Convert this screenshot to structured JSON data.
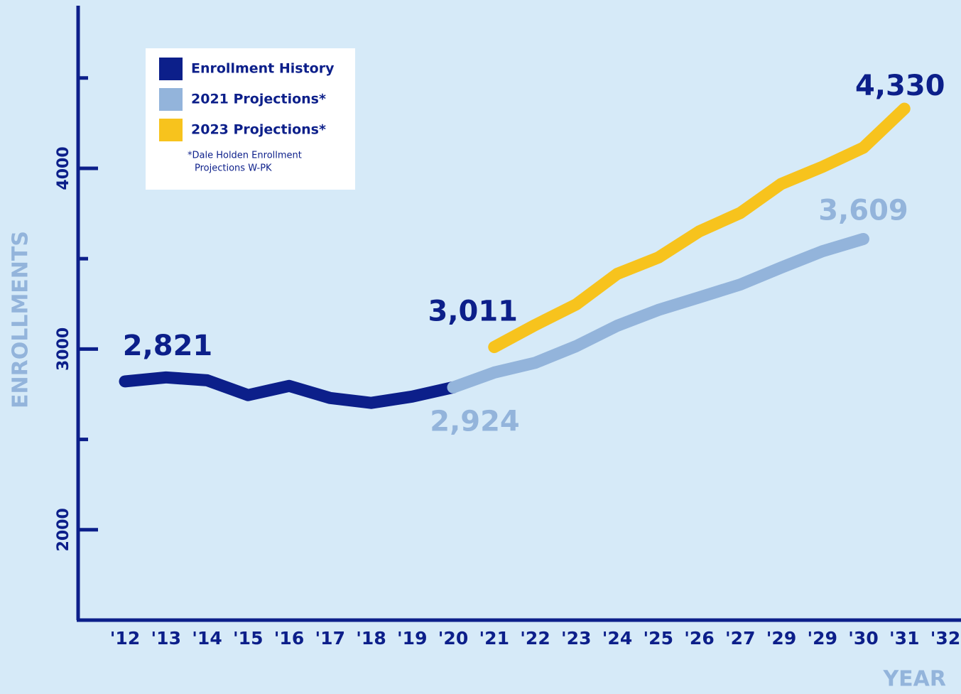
{
  "chart_data": {
    "type": "line",
    "ylabel": "ENROLLMENTS",
    "xlabel": "YEAR",
    "categories": [
      "'12",
      "'13",
      "'14",
      "'15",
      "'16",
      "'17",
      "'18",
      "'19",
      "'20",
      "'21",
      "'22",
      "'23",
      "'24",
      "'25",
      "'26",
      "'27",
      "'29",
      "'29",
      "'30",
      "'31",
      "'32"
    ],
    "series": [
      {
        "name": "Enrollment History",
        "color": "#0c1f8a",
        "values": [
          2821,
          2843,
          2827,
          2745,
          2796,
          2729,
          2702,
          2737,
          2788,
          null,
          null,
          null,
          null,
          null,
          null,
          null,
          null,
          null,
          null,
          null,
          null
        ],
        "value_labels": [
          "2,821",
          null,
          null,
          null,
          null,
          null,
          null,
          null,
          null,
          null,
          null,
          null,
          null,
          null,
          null,
          null,
          null,
          null,
          null,
          null,
          null
        ]
      },
      {
        "name": "2021 Projections*",
        "color": "#93b4db",
        "values": [
          null,
          null,
          null,
          null,
          null,
          null,
          null,
          null,
          2788,
          2870,
          2924,
          3016,
          3129,
          3216,
          3286,
          3357,
          3451,
          3541,
          3609,
          null,
          null
        ],
        "value_labels": [
          null,
          null,
          null,
          null,
          null,
          null,
          null,
          null,
          null,
          null,
          "2,924",
          null,
          null,
          null,
          null,
          null,
          null,
          null,
          "3,609",
          null,
          null
        ]
      },
      {
        "name": "2023 Projections*",
        "color": "#f7c31d",
        "values": [
          null,
          null,
          null,
          null,
          null,
          null,
          null,
          null,
          null,
          3011,
          3133,
          3247,
          3416,
          3506,
          3651,
          3753,
          3914,
          4008,
          4114,
          4330,
          null
        ],
        "value_labels": [
          null,
          null,
          null,
          null,
          null,
          null,
          null,
          null,
          null,
          "3,011",
          null,
          null,
          null,
          null,
          null,
          null,
          null,
          null,
          null,
          "4,330",
          null
        ]
      }
    ],
    "label_colors": [
      "#0c1f8a",
      "#93b4db",
      "#0c1f8a"
    ],
    "footnote": [
      "*Dale Holden Enrollment",
      "Projections W-PK"
    ],
    "ylim": [
      1500,
      4900
    ],
    "yticks": [
      2000,
      3000,
      4000
    ],
    "minor_yticks": [
      2500,
      3500,
      4500
    ],
    "legend": "upper left"
  }
}
